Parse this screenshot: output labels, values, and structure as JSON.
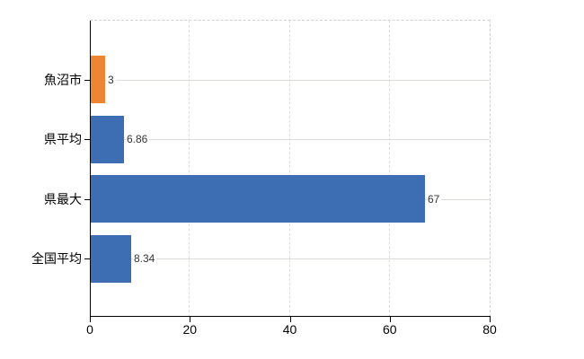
{
  "chart_data": {
    "type": "bar",
    "orientation": "horizontal",
    "title": "",
    "xlabel": "",
    "ylabel": "",
    "categories": [
      "魚沼市",
      "県平均",
      "県最大",
      "全国平均"
    ],
    "values": [
      3,
      6.86,
      67,
      8.34
    ],
    "value_labels": [
      "3",
      "6.86",
      "67",
      "8.34"
    ],
    "bar_colors": [
      "#ed8532",
      "#3d6eb4",
      "#3d6eb4",
      "#3d6eb4"
    ],
    "xlim": [
      0,
      80
    ],
    "x_tick_values": [
      0,
      20,
      40,
      60,
      80
    ],
    "x_tick_labels": [
      "0",
      "20",
      "40",
      "60",
      "80"
    ],
    "grid": true,
    "legend": "none",
    "colors": {
      "accent_orange": "#ed8532",
      "series_blue": "#3d6eb4",
      "axis": "#000000",
      "gridline": "#dcdcdc",
      "plot_border": "#cfcfcf",
      "value_label_text": "#333333",
      "background": "#ffffff"
    }
  }
}
